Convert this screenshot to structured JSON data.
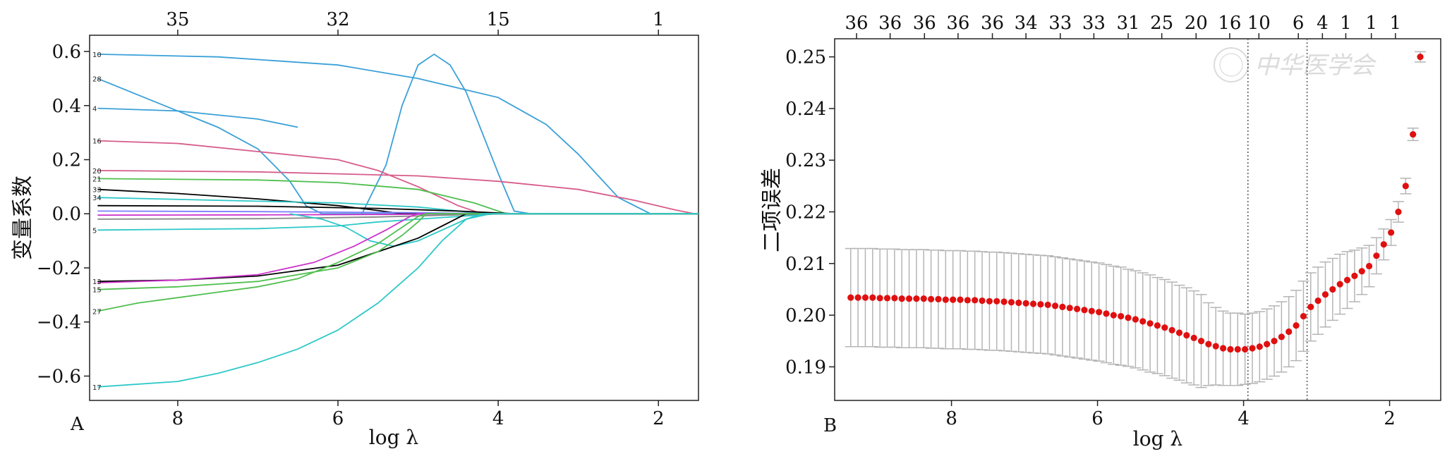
{
  "chart_data": [
    {
      "type": "line",
      "panel_label": "A",
      "xlabel": "log λ",
      "ylabel": "变量系数",
      "xlim": [
        9.1,
        1.5
      ],
      "ylim": [
        -0.69,
        0.66
      ],
      "x_ticks": [
        8,
        6,
        4,
        2
      ],
      "y_ticks": [
        0.6,
        0.4,
        0.2,
        0.0,
        -0.2,
        -0.4,
        -0.6
      ],
      "y_tick_labels": [
        "0.6",
        "0.4",
        "0.2",
        "0.0",
        "−0.2",
        "−0.4",
        "−0.6"
      ],
      "top_ticks": [
        {
          "x": 8,
          "label": "35"
        },
        {
          "x": 6,
          "label": "32"
        },
        {
          "x": 4,
          "label": "15"
        },
        {
          "x": 2,
          "label": "1"
        }
      ],
      "grid": false,
      "series": [
        {
          "label": "10",
          "color": "#3aa0d8",
          "points": [
            [
              9.0,
              0.59
            ],
            [
              7.5,
              0.58
            ],
            [
              6.0,
              0.55
            ],
            [
              5.0,
              0.5
            ],
            [
              4.0,
              0.43
            ],
            [
              3.4,
              0.33
            ],
            [
              3.0,
              0.22
            ],
            [
              2.5,
              0.06
            ],
            [
              2.1,
              0.0
            ],
            [
              1.5,
              0.0
            ]
          ]
        },
        {
          "label": "28",
          "color": "#3aa0d8",
          "points": [
            [
              9.0,
              0.5
            ],
            [
              8.5,
              0.44
            ],
            [
              8.0,
              0.38
            ],
            [
              7.5,
              0.32
            ],
            [
              7.0,
              0.24
            ],
            [
              6.6,
              0.12
            ],
            [
              6.4,
              0.03
            ],
            [
              6.2,
              0.0
            ],
            [
              1.5,
              0.0
            ]
          ]
        },
        {
          "label": "4",
          "color": "#3aa0d8",
          "points": [
            [
              9.0,
              0.39
            ],
            [
              8.0,
              0.38
            ],
            [
              7.0,
              0.35
            ],
            [
              6.5,
              0.32
            ]
          ]
        },
        {
          "label": "",
          "color": "#3aa0d8",
          "points": [
            [
              5.7,
              0.0
            ],
            [
              5.4,
              0.18
            ],
            [
              5.2,
              0.4
            ],
            [
              5.0,
              0.55
            ],
            [
              4.8,
              0.59
            ],
            [
              4.6,
              0.55
            ],
            [
              4.4,
              0.45
            ],
            [
              4.2,
              0.3
            ],
            [
              4.0,
              0.15
            ],
            [
              3.8,
              0.01
            ],
            [
              3.6,
              0.0
            ],
            [
              1.5,
              0.0
            ]
          ]
        },
        {
          "label": "16",
          "color": "#d65c8a",
          "points": [
            [
              9.0,
              0.27
            ],
            [
              8.0,
              0.26
            ],
            [
              7.0,
              0.23
            ],
            [
              6.0,
              0.2
            ],
            [
              5.5,
              0.16
            ],
            [
              5.0,
              0.1
            ],
            [
              4.5,
              0.03
            ],
            [
              4.2,
              0.0
            ],
            [
              1.5,
              0.0
            ]
          ]
        },
        {
          "label": "20",
          "color": "#d65c8a",
          "points": [
            [
              9.0,
              0.16
            ],
            [
              7.0,
              0.155
            ],
            [
              5.0,
              0.14
            ],
            [
              4.0,
              0.12
            ],
            [
              3.0,
              0.09
            ],
            [
              2.3,
              0.05
            ],
            [
              1.8,
              0.015
            ],
            [
              1.55,
              0.0
            ]
          ]
        },
        {
          "label": "21",
          "color": "#4fbf4f",
          "points": [
            [
              9.0,
              0.13
            ],
            [
              7.0,
              0.125
            ],
            [
              6.0,
              0.115
            ],
            [
              5.0,
              0.09
            ],
            [
              4.3,
              0.04
            ],
            [
              3.9,
              0.0
            ],
            [
              1.5,
              0.0
            ]
          ]
        },
        {
          "label": "33",
          "color": "#000000",
          "points": [
            [
              9.0,
              0.09
            ],
            [
              8.0,
              0.075
            ],
            [
              7.0,
              0.055
            ],
            [
              6.0,
              0.03
            ],
            [
              5.5,
              0.012
            ],
            [
              5.2,
              0.0
            ],
            [
              1.5,
              0.0
            ]
          ]
        },
        {
          "label": "34",
          "color": "#2ec8c8",
          "points": [
            [
              9.0,
              0.06
            ],
            [
              7.5,
              0.05
            ],
            [
              6.0,
              0.04
            ],
            [
              5.0,
              0.025
            ],
            [
              4.5,
              0.01
            ],
            [
              4.2,
              0.0
            ],
            [
              1.5,
              0.0
            ]
          ]
        },
        {
          "label": "",
          "color": "#000000",
          "points": [
            [
              9.0,
              0.03
            ],
            [
              7.0,
              0.028
            ],
            [
              5.5,
              0.02
            ],
            [
              4.5,
              0.01
            ],
            [
              3.8,
              0.0
            ],
            [
              1.5,
              0.0
            ]
          ]
        },
        {
          "label": "",
          "color": "#7f7fff",
          "points": [
            [
              9.0,
              0.01
            ],
            [
              7.0,
              0.008
            ],
            [
              5.0,
              0.004
            ],
            [
              4.0,
              0.0
            ],
            [
              1.5,
              0.0
            ]
          ]
        },
        {
          "label": "",
          "color": "#cc33cc",
          "points": [
            [
              9.0,
              -0.005
            ],
            [
              7.0,
              -0.004
            ],
            [
              5.0,
              -0.002
            ],
            [
              4.0,
              0.0
            ],
            [
              1.5,
              0.0
            ]
          ]
        },
        {
          "label": "",
          "color": "#888888",
          "points": [
            [
              9.0,
              -0.02
            ],
            [
              7.0,
              -0.018
            ],
            [
              5.5,
              -0.012
            ],
            [
              4.5,
              -0.004
            ],
            [
              4.0,
              0.0
            ],
            [
              1.5,
              0.0
            ]
          ]
        },
        {
          "label": "5",
          "color": "#2ec8c8",
          "points": [
            [
              9.0,
              -0.06
            ],
            [
              7.0,
              -0.055
            ],
            [
              6.0,
              -0.045
            ],
            [
              5.5,
              -0.03
            ],
            [
              5.0,
              -0.02
            ],
            [
              4.5,
              -0.01
            ],
            [
              4.0,
              0.0
            ],
            [
              1.5,
              0.0
            ]
          ]
        },
        {
          "label": "",
          "color": "#2ec8c8",
          "points": [
            [
              6.6,
              0.0
            ],
            [
              6.2,
              -0.02
            ],
            [
              5.9,
              -0.05
            ],
            [
              5.6,
              -0.1
            ],
            [
              5.3,
              -0.12
            ],
            [
              5.0,
              -0.1
            ],
            [
              4.7,
              -0.06
            ],
            [
              4.4,
              -0.02
            ],
            [
              4.1,
              0.0
            ],
            [
              1.5,
              0.0
            ]
          ]
        },
        {
          "label": "13",
          "color": "#000000",
          "points": [
            [
              9.0,
              -0.25
            ],
            [
              8.0,
              -0.245
            ],
            [
              7.0,
              -0.23
            ],
            [
              6.0,
              -0.19
            ],
            [
              5.5,
              -0.14
            ],
            [
              5.0,
              -0.09
            ],
            [
              4.6,
              -0.03
            ],
            [
              4.4,
              0.0
            ],
            [
              1.5,
              0.0
            ]
          ]
        },
        {
          "label": "",
          "color": "#cc33cc",
          "points": [
            [
              9.0,
              -0.255
            ],
            [
              8.0,
              -0.245
            ],
            [
              7.0,
              -0.225
            ],
            [
              6.3,
              -0.18
            ],
            [
              5.8,
              -0.12
            ],
            [
              5.4,
              -0.06
            ],
            [
              5.1,
              -0.01
            ],
            [
              5.0,
              0.0
            ],
            [
              1.5,
              0.0
            ]
          ]
        },
        {
          "label": "15",
          "color": "#4fbf4f",
          "points": [
            [
              9.0,
              -0.28
            ],
            [
              8.0,
              -0.27
            ],
            [
              7.0,
              -0.25
            ],
            [
              6.0,
              -0.2
            ],
            [
              5.5,
              -0.14
            ],
            [
              5.2,
              -0.08
            ],
            [
              5.0,
              -0.03
            ],
            [
              4.9,
              0.0
            ],
            [
              1.5,
              0.0
            ]
          ]
        },
        {
          "label": "27",
          "color": "#4fbf4f",
          "points": [
            [
              9.0,
              -0.36
            ],
            [
              8.5,
              -0.33
            ],
            [
              8.0,
              -0.31
            ],
            [
              7.5,
              -0.29
            ],
            [
              7.0,
              -0.27
            ],
            [
              6.5,
              -0.24
            ],
            [
              6.0,
              -0.18
            ],
            [
              5.5,
              -0.11
            ],
            [
              5.2,
              -0.05
            ],
            [
              5.0,
              -0.01
            ],
            [
              4.9,
              0.0
            ],
            [
              1.5,
              0.0
            ]
          ]
        },
        {
          "label": "17",
          "color": "#2ec8c8",
          "points": [
            [
              9.0,
              -0.64
            ],
            [
              8.0,
              -0.62
            ],
            [
              7.5,
              -0.59
            ],
            [
              7.0,
              -0.55
            ],
            [
              6.5,
              -0.5
            ],
            [
              6.0,
              -0.43
            ],
            [
              5.5,
              -0.33
            ],
            [
              5.0,
              -0.2
            ],
            [
              4.7,
              -0.1
            ],
            [
              4.4,
              -0.02
            ],
            [
              4.2,
              0.0
            ],
            [
              1.5,
              0.0
            ]
          ]
        }
      ]
    },
    {
      "type": "scatter",
      "panel_label": "B",
      "xlabel": "log λ",
      "ylabel": "二项误差",
      "xlim": [
        9.6,
        1.3
      ],
      "ylim": [
        0.1835,
        0.2535
      ],
      "x_ticks": [
        8,
        6,
        4,
        2
      ],
      "y_ticks": [
        0.19,
        0.2,
        0.21,
        0.22,
        0.23,
        0.24,
        0.25
      ],
      "y_tick_labels": [
        "0.19",
        "0.20",
        "0.21",
        "0.22",
        "0.23",
        "0.24",
        "0.25"
      ],
      "top_ticks": [
        {
          "x": 9.3,
          "label": "36"
        },
        {
          "x": 8.84,
          "label": "36"
        },
        {
          "x": 8.37,
          "label": "36"
        },
        {
          "x": 7.91,
          "label": "36"
        },
        {
          "x": 7.44,
          "label": "36"
        },
        {
          "x": 6.98,
          "label": "34"
        },
        {
          "x": 6.51,
          "label": "33"
        },
        {
          "x": 6.05,
          "label": "33"
        },
        {
          "x": 5.58,
          "label": "31"
        },
        {
          "x": 5.12,
          "label": "25"
        },
        {
          "x": 4.65,
          "label": "20"
        },
        {
          "x": 4.19,
          "label": "16"
        },
        {
          "x": 3.79,
          "label": "10"
        },
        {
          "x": 3.25,
          "label": "6"
        },
        {
          "x": 2.92,
          "label": "4"
        },
        {
          "x": 2.6,
          "label": "1"
        },
        {
          "x": 2.25,
          "label": "1"
        },
        {
          "x": 1.92,
          "label": "1"
        }
      ],
      "vlines": [
        3.94,
        3.13
      ],
      "grid": false,
      "logo_text": "中华医学会",
      "x": [
        9.38,
        9.28,
        9.18,
        9.08,
        8.98,
        8.88,
        8.78,
        8.68,
        8.58,
        8.48,
        8.38,
        8.28,
        8.18,
        8.08,
        7.98,
        7.88,
        7.78,
        7.68,
        7.58,
        7.48,
        7.38,
        7.28,
        7.18,
        7.08,
        6.98,
        6.88,
        6.78,
        6.68,
        6.58,
        6.48,
        6.38,
        6.28,
        6.18,
        6.08,
        5.98,
        5.88,
        5.78,
        5.68,
        5.58,
        5.48,
        5.38,
        5.28,
        5.18,
        5.08,
        4.98,
        4.88,
        4.78,
        4.68,
        4.58,
        4.48,
        4.38,
        4.28,
        4.18,
        4.08,
        3.98,
        3.88,
        3.78,
        3.68,
        3.58,
        3.48,
        3.38,
        3.28,
        3.18,
        3.08,
        2.98,
        2.88,
        2.78,
        2.68,
        2.58,
        2.48,
        2.38,
        2.28,
        2.18,
        2.08,
        1.98,
        1.88,
        1.78,
        1.68,
        1.58
      ],
      "y": [
        0.2034,
        0.2034,
        0.2034,
        0.2034,
        0.2033,
        0.2033,
        0.2033,
        0.2032,
        0.2032,
        0.2032,
        0.2032,
        0.2031,
        0.2031,
        0.203,
        0.203,
        0.203,
        0.2029,
        0.2029,
        0.2028,
        0.2027,
        0.2027,
        0.2026,
        0.2025,
        0.2024,
        0.2023,
        0.2022,
        0.2021,
        0.202,
        0.2018,
        0.2016,
        0.2014,
        0.2012,
        0.201,
        0.2008,
        0.2006,
        0.2003,
        0.2,
        0.1998,
        0.1995,
        0.1992,
        0.1988,
        0.1984,
        0.198,
        0.1976,
        0.1971,
        0.1966,
        0.1961,
        0.1956,
        0.195,
        0.1944,
        0.194,
        0.1936,
        0.1934,
        0.1934,
        0.1934,
        0.1936,
        0.1939,
        0.1944,
        0.195,
        0.1958,
        0.1968,
        0.198,
        0.1998,
        0.2016,
        0.2028,
        0.204,
        0.205,
        0.206,
        0.2068,
        0.2076,
        0.2085,
        0.2095,
        0.2115,
        0.2137,
        0.216,
        0.22,
        0.225,
        0.235,
        0.25
      ],
      "err": [
        0.0095,
        0.0095,
        0.0095,
        0.0095,
        0.0095,
        0.0095,
        0.0095,
        0.0095,
        0.0095,
        0.0095,
        0.0095,
        0.0095,
        0.0095,
        0.0095,
        0.0095,
        0.0095,
        0.0095,
        0.0095,
        0.0095,
        0.0095,
        0.0095,
        0.0095,
        0.0095,
        0.0095,
        0.0095,
        0.0095,
        0.0095,
        0.0095,
        0.0095,
        0.0095,
        0.0095,
        0.0095,
        0.0095,
        0.0095,
        0.0095,
        0.0095,
        0.0095,
        0.0095,
        0.0094,
        0.0094,
        0.0094,
        0.0094,
        0.0093,
        0.0093,
        0.0093,
        0.0092,
        0.0092,
        0.0091,
        0.009,
        0.008,
        0.0075,
        0.0072,
        0.007,
        0.007,
        0.0068,
        0.0068,
        0.0068,
        0.0068,
        0.0068,
        0.0068,
        0.0068,
        0.0068,
        0.0068,
        0.0066,
        0.0065,
        0.0063,
        0.006,
        0.0058,
        0.0055,
        0.005,
        0.0045,
        0.004,
        0.0035,
        0.003,
        0.0025,
        0.002,
        0.0015,
        0.0012,
        0.001
      ]
    }
  ]
}
